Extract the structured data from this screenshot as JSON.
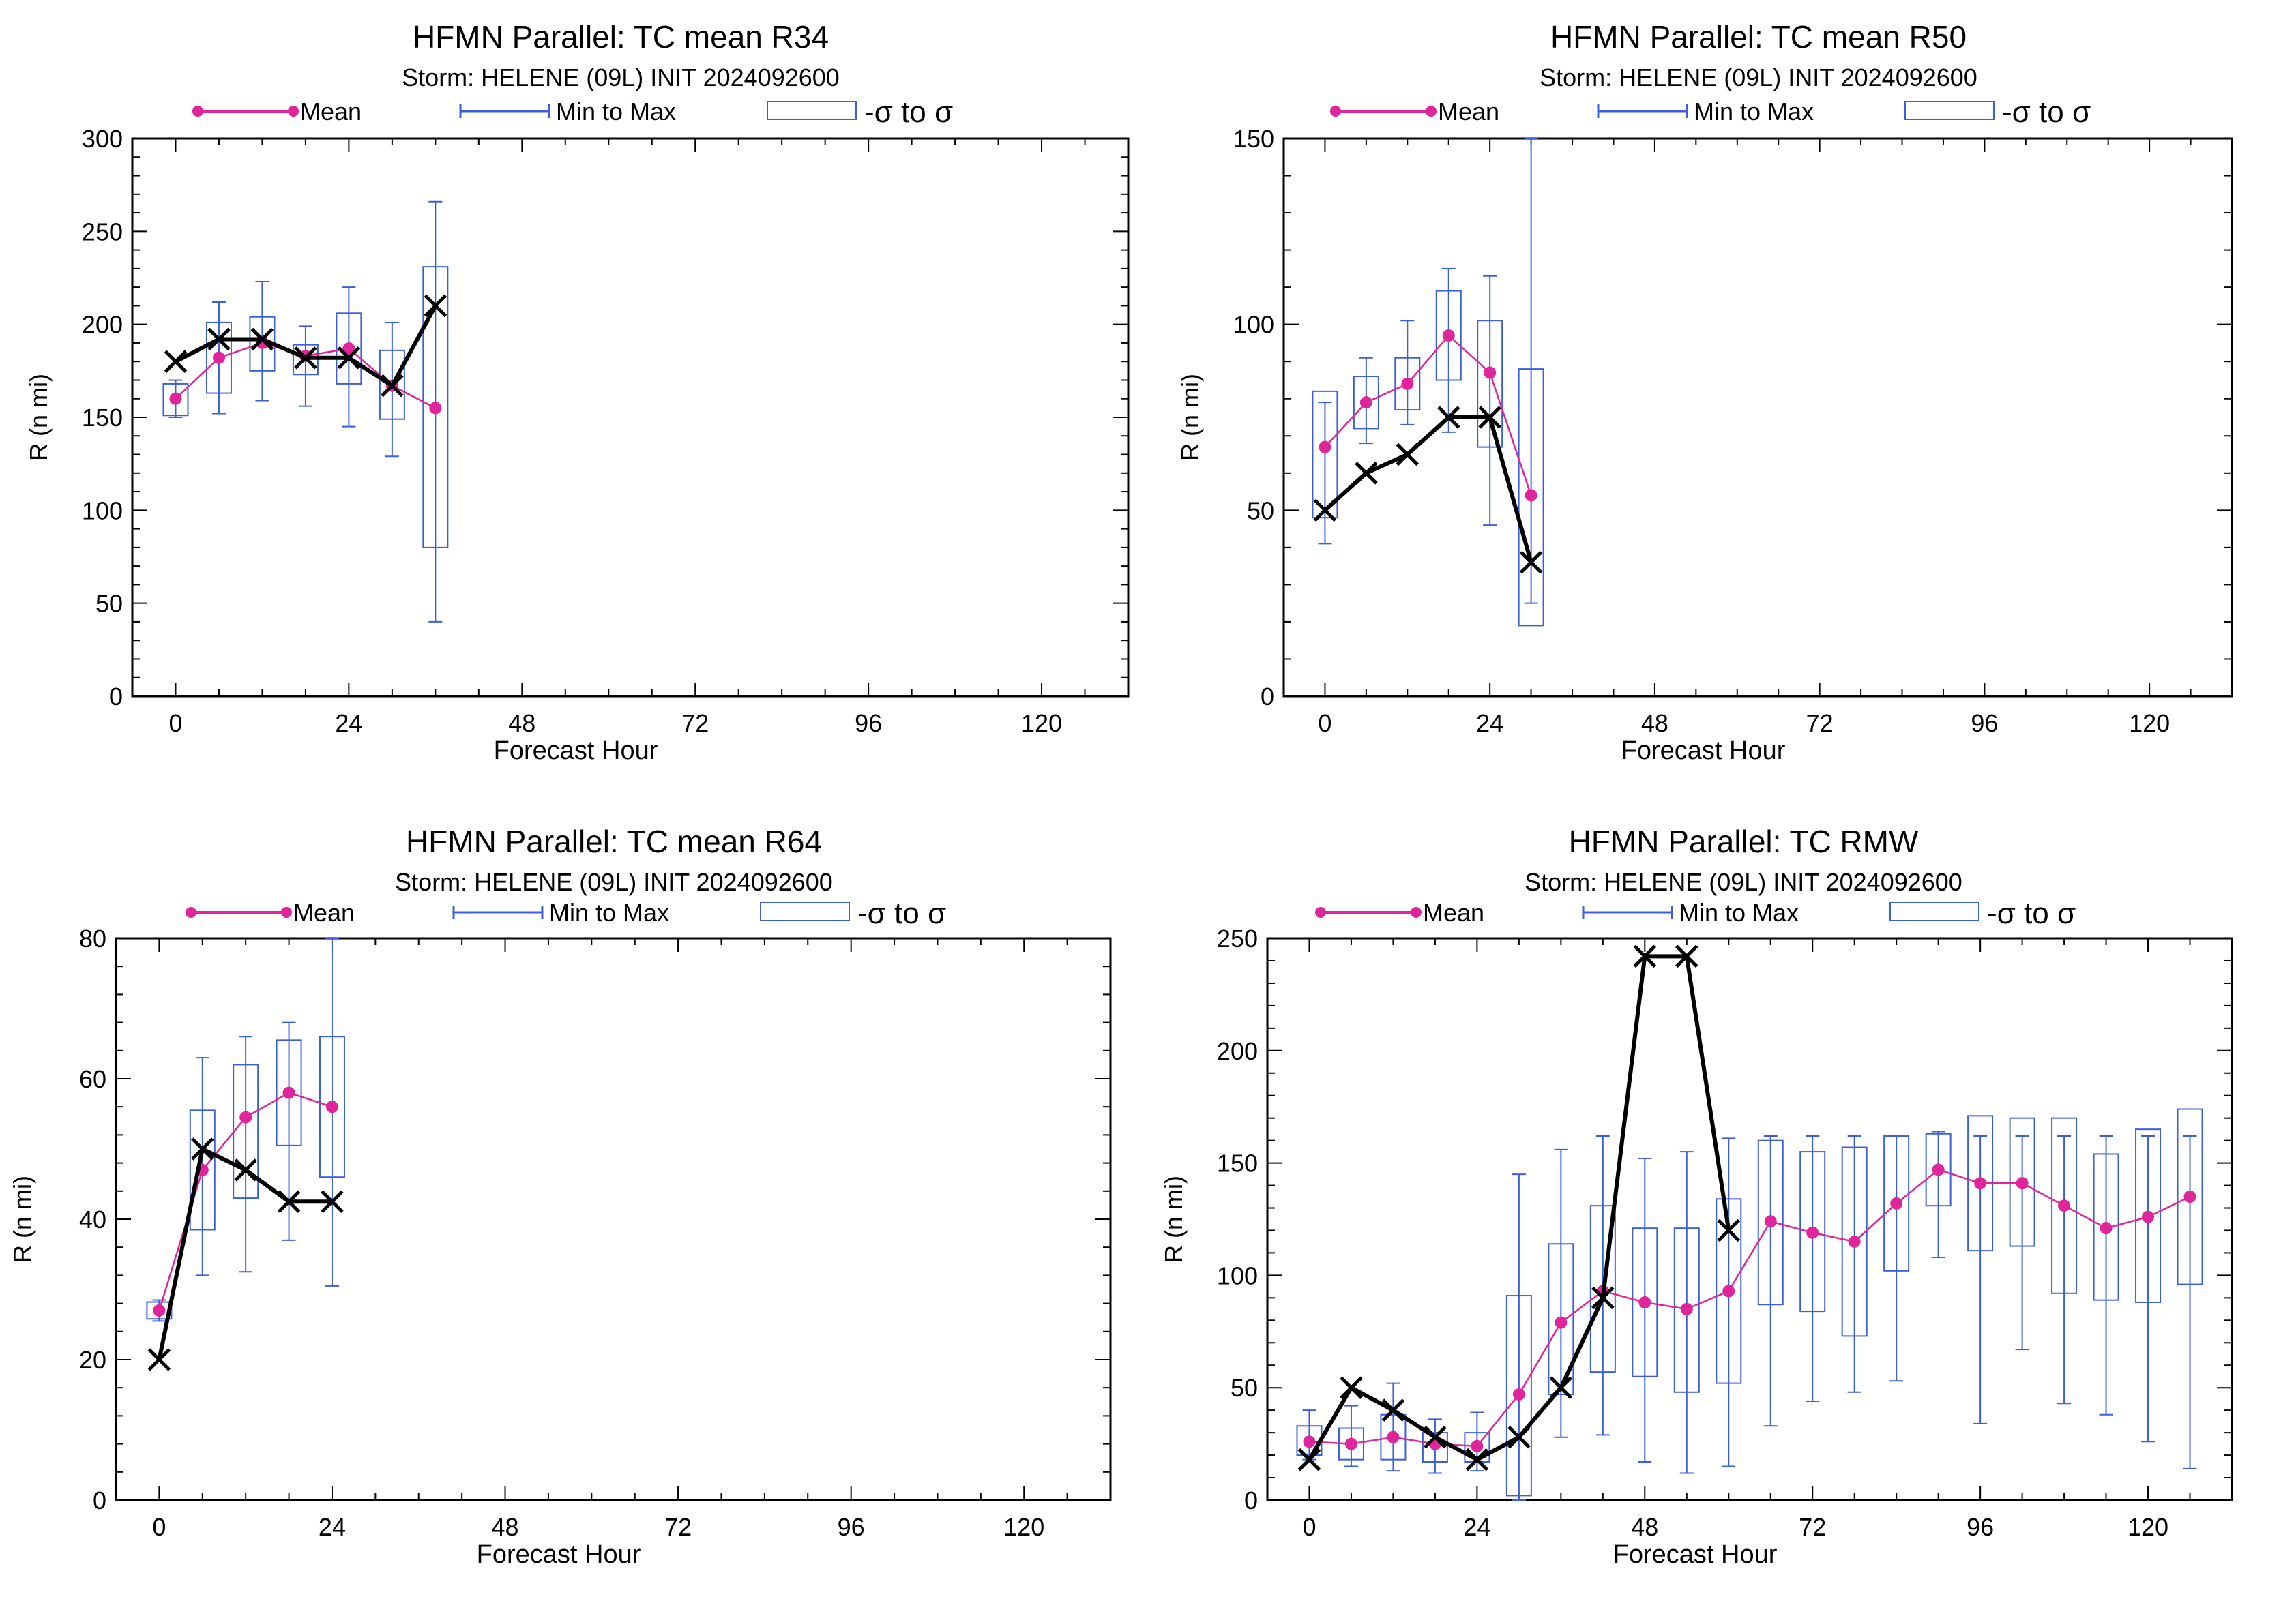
{
  "colors": {
    "mean": "#e0249c",
    "range": "#3b5fdc",
    "track": "#000000",
    "frame": "#000000"
  },
  "legend": {
    "mean": "Mean",
    "range": "Min to Max",
    "sigma": "-σ to σ"
  },
  "chart_data": [
    {
      "type": "box",
      "title": "HFMN Parallel: TC mean R34",
      "subtitle": "Storm: HELENE (09L) INIT 2024092600",
      "xlabel": "Forecast Hour",
      "ylabel": "R (n mi)",
      "xlim": [
        -6,
        132
      ],
      "ylim": [
        0,
        300
      ],
      "xticks": [
        0,
        24,
        48,
        72,
        96,
        120
      ],
      "yticks": [
        0,
        50,
        100,
        150,
        200,
        250,
        300
      ],
      "legend_position": "top",
      "hours": [
        0,
        6,
        12,
        18,
        24,
        30,
        36
      ],
      "mean": [
        160,
        182,
        190,
        183,
        187,
        167,
        155
      ],
      "min": [
        150,
        152,
        159,
        156,
        145,
        129,
        40
      ],
      "max": [
        170,
        212,
        223,
        199,
        220,
        201,
        266
      ],
      "sigma_low": [
        151,
        163,
        175,
        173,
        168,
        149,
        80
      ],
      "sigma_high": [
        168,
        201,
        204,
        189,
        206,
        186,
        231
      ],
      "track": [
        180,
        192,
        192,
        182,
        182,
        167,
        210
      ]
    },
    {
      "type": "box",
      "title": "HFMN Parallel: TC mean R50",
      "subtitle": "Storm: HELENE (09L) INIT 2024092600",
      "xlabel": "Forecast Hour",
      "ylabel": "R (n mi)",
      "xlim": [
        -6,
        132
      ],
      "ylim": [
        0,
        150
      ],
      "xticks": [
        0,
        24,
        48,
        72,
        96,
        120
      ],
      "yticks": [
        0,
        50,
        100,
        150
      ],
      "legend_position": "top",
      "hours": [
        0,
        6,
        12,
        18,
        24,
        30
      ],
      "mean": [
        67,
        79,
        84,
        97,
        87,
        54
      ],
      "min": [
        41,
        68,
        73,
        71,
        46,
        25
      ],
      "max": [
        79,
        91,
        101,
        115,
        113,
        150
      ],
      "sigma_low": [
        48,
        72,
        77,
        85,
        67,
        19
      ],
      "sigma_high": [
        82,
        86,
        91,
        109,
        101,
        88
      ],
      "track": [
        50,
        60,
        65,
        75,
        75,
        36
      ]
    },
    {
      "type": "box",
      "title": "HFMN Parallel: TC mean R64",
      "subtitle": "Storm: HELENE (09L) INIT 2024092600",
      "xlabel": "Forecast Hour",
      "ylabel": "R (n mi)",
      "xlim": [
        -6,
        132
      ],
      "ylim": [
        0,
        80
      ],
      "xticks": [
        0,
        24,
        48,
        72,
        96,
        120
      ],
      "yticks": [
        0,
        20,
        40,
        60,
        80
      ],
      "legend_position": "top",
      "hours": [
        0,
        6,
        12,
        18,
        24
      ],
      "mean": [
        27,
        47,
        54.5,
        58,
        56
      ],
      "min": [
        25.5,
        32,
        32.5,
        37,
        30.5
      ],
      "max": [
        28.5,
        63,
        66,
        68,
        80
      ],
      "sigma_low": [
        25.8,
        38.5,
        43,
        50.5,
        46
      ],
      "sigma_high": [
        28.2,
        55.5,
        62,
        65.5,
        66
      ],
      "track": [
        20,
        50,
        47,
        42.5,
        42.5
      ]
    },
    {
      "type": "box",
      "title": "HFMN Parallel: TC RMW",
      "subtitle": "Storm: HELENE (09L) INIT 2024092600",
      "xlabel": "Forecast Hour",
      "ylabel": "R (n mi)",
      "xlim": [
        -6,
        132
      ],
      "ylim": [
        0,
        250
      ],
      "xticks": [
        0,
        24,
        48,
        72,
        96,
        120
      ],
      "yticks": [
        0,
        50,
        100,
        150,
        200,
        250
      ],
      "legend_position": "top",
      "hours": [
        0,
        6,
        12,
        18,
        24,
        30,
        36,
        42,
        48,
        54,
        60,
        66,
        72,
        78,
        84,
        90,
        96,
        102,
        108,
        114,
        120,
        126
      ],
      "mean": [
        26,
        25,
        28,
        25,
        24,
        47,
        79,
        93,
        88,
        85,
        93,
        124,
        119,
        115,
        132,
        147,
        141,
        141,
        131,
        121,
        126,
        135
      ],
      "min": [
        18,
        15,
        13,
        12,
        13,
        0,
        28,
        29,
        17,
        12,
        15,
        33,
        44,
        48,
        53,
        108,
        34,
        67,
        43,
        38,
        26,
        14
      ],
      "max": [
        40,
        42,
        52,
        36,
        39,
        145,
        156,
        162,
        152,
        155,
        161,
        162,
        162,
        162,
        162,
        164,
        162,
        162,
        162,
        162,
        162,
        162
      ],
      "sigma_low": [
        20,
        18,
        18,
        17,
        17,
        2,
        47,
        57,
        55,
        48,
        52,
        87,
        84,
        73,
        102,
        131,
        111,
        113,
        92,
        89,
        88,
        96
      ],
      "sigma_high": [
        33,
        32,
        38,
        30,
        30,
        91,
        114,
        131,
        121,
        121,
        134,
        160,
        155,
        157,
        162,
        163,
        171,
        170,
        170,
        154,
        165,
        174
      ],
      "track": [
        18,
        50,
        40,
        28,
        18,
        28,
        50,
        90,
        242,
        242,
        120
      ]
    }
  ]
}
